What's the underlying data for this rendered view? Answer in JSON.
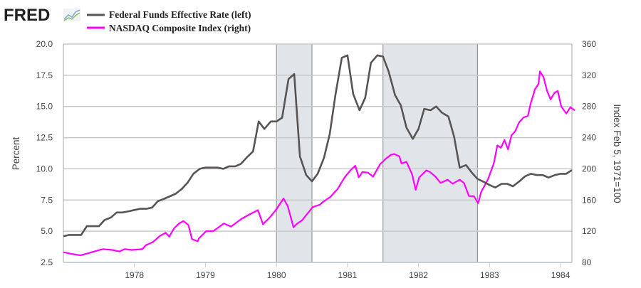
{
  "logo": {
    "text": "FRED",
    "icon": "line-chart-icon"
  },
  "legend": [
    {
      "label": "Federal Funds Effective Rate (left)",
      "color": "#595454"
    },
    {
      "label": "NASDAQ Composite Index (right)",
      "color": "#ff00ff"
    }
  ],
  "chart_data": {
    "type": "line",
    "title": "",
    "xlabel": "",
    "xlim": [
      1977.0,
      1984.16
    ],
    "x_ticks": [
      {
        "value": 1978,
        "label": "1978"
      },
      {
        "value": 1979,
        "label": "1979"
      },
      {
        "value": 1980,
        "label": "1980"
      },
      {
        "value": 1981,
        "label": "1981"
      },
      {
        "value": 1982,
        "label": "1982"
      },
      {
        "value": 1983,
        "label": "1983"
      },
      {
        "value": 1984,
        "label": "1984"
      }
    ],
    "y_left": {
      "label": "Percent",
      "range": [
        2.5,
        20.0
      ],
      "ticks": [
        "2.5",
        "5.0",
        "7.5",
        "10.0",
        "12.5",
        "15.0",
        "17.5",
        "20.0"
      ]
    },
    "y_right": {
      "label": "Index Feb 5, 1971=100",
      "range": [
        80,
        360
      ],
      "ticks": [
        "80",
        "120",
        "160",
        "200",
        "240",
        "280",
        "320",
        "360"
      ]
    },
    "grid": true,
    "recessions": [
      {
        "start": 1980.0,
        "end": 1980.5
      },
      {
        "start": 1981.5,
        "end": 1982.83
      }
    ],
    "recession_color": "#e1e5ea",
    "series": [
      {
        "name": "Federal Funds Effective Rate (left)",
        "axis": "left",
        "color": "#595454",
        "points": [
          [
            1977.0,
            4.6
          ],
          [
            1977.08,
            4.7
          ],
          [
            1977.17,
            4.7
          ],
          [
            1977.25,
            4.7
          ],
          [
            1977.33,
            5.4
          ],
          [
            1977.42,
            5.4
          ],
          [
            1977.5,
            5.4
          ],
          [
            1977.58,
            5.9
          ],
          [
            1977.67,
            6.1
          ],
          [
            1977.75,
            6.5
          ],
          [
            1977.83,
            6.5
          ],
          [
            1977.92,
            6.6
          ],
          [
            1978.0,
            6.7
          ],
          [
            1978.08,
            6.8
          ],
          [
            1978.17,
            6.8
          ],
          [
            1978.25,
            6.9
          ],
          [
            1978.33,
            7.4
          ],
          [
            1978.42,
            7.6
          ],
          [
            1978.5,
            7.8
          ],
          [
            1978.58,
            8.0
          ],
          [
            1978.67,
            8.4
          ],
          [
            1978.75,
            8.9
          ],
          [
            1978.83,
            9.6
          ],
          [
            1978.92,
            10.0
          ],
          [
            1979.0,
            10.1
          ],
          [
            1979.08,
            10.1
          ],
          [
            1979.17,
            10.1
          ],
          [
            1979.25,
            10.0
          ],
          [
            1979.33,
            10.2
          ],
          [
            1979.42,
            10.2
          ],
          [
            1979.5,
            10.4
          ],
          [
            1979.58,
            10.9
          ],
          [
            1979.67,
            11.4
          ],
          [
            1979.75,
            13.8
          ],
          [
            1979.83,
            13.2
          ],
          [
            1979.92,
            13.8
          ],
          [
            1980.0,
            13.8
          ],
          [
            1980.08,
            14.1
          ],
          [
            1980.17,
            17.2
          ],
          [
            1980.25,
            17.6
          ],
          [
            1980.33,
            11.0
          ],
          [
            1980.42,
            9.5
          ],
          [
            1980.5,
            9.0
          ],
          [
            1980.58,
            9.6
          ],
          [
            1980.67,
            10.9
          ],
          [
            1980.75,
            12.8
          ],
          [
            1980.83,
            15.9
          ],
          [
            1980.92,
            18.9
          ],
          [
            1981.0,
            19.1
          ],
          [
            1981.08,
            16.0
          ],
          [
            1981.17,
            14.7
          ],
          [
            1981.25,
            15.7
          ],
          [
            1981.33,
            18.5
          ],
          [
            1981.42,
            19.1
          ],
          [
            1981.5,
            19.0
          ],
          [
            1981.58,
            17.8
          ],
          [
            1981.67,
            15.9
          ],
          [
            1981.75,
            15.1
          ],
          [
            1981.83,
            13.3
          ],
          [
            1981.92,
            12.4
          ],
          [
            1982.0,
            13.2
          ],
          [
            1982.08,
            14.8
          ],
          [
            1982.17,
            14.7
          ],
          [
            1982.25,
            15.0
          ],
          [
            1982.33,
            14.5
          ],
          [
            1982.42,
            14.2
          ],
          [
            1982.5,
            12.6
          ],
          [
            1982.58,
            10.1
          ],
          [
            1982.67,
            10.3
          ],
          [
            1982.75,
            9.7
          ],
          [
            1982.83,
            9.2
          ],
          [
            1982.92,
            8.95
          ],
          [
            1983.0,
            8.7
          ],
          [
            1983.08,
            8.5
          ],
          [
            1983.17,
            8.8
          ],
          [
            1983.25,
            8.8
          ],
          [
            1983.33,
            8.6
          ],
          [
            1983.42,
            9.0
          ],
          [
            1983.5,
            9.4
          ],
          [
            1983.58,
            9.6
          ],
          [
            1983.67,
            9.5
          ],
          [
            1983.75,
            9.5
          ],
          [
            1983.83,
            9.3
          ],
          [
            1983.92,
            9.5
          ],
          [
            1984.0,
            9.6
          ],
          [
            1984.08,
            9.6
          ],
          [
            1984.16,
            9.9
          ]
        ]
      },
      {
        "name": "NASDAQ Composite Index (right)",
        "axis": "right",
        "color": "#ff00ff",
        "points": [
          [
            1977.0,
            93
          ],
          [
            1977.11,
            91
          ],
          [
            1977.24,
            89
          ],
          [
            1977.36,
            92
          ],
          [
            1977.51,
            96
          ],
          [
            1977.56,
            97
          ],
          [
            1977.69,
            96
          ],
          [
            1977.79,
            94
          ],
          [
            1977.86,
            97
          ],
          [
            1977.96,
            96
          ],
          [
            1978.11,
            97
          ],
          [
            1978.16,
            102
          ],
          [
            1978.26,
            106
          ],
          [
            1978.36,
            114
          ],
          [
            1978.44,
            118
          ],
          [
            1978.49,
            113
          ],
          [
            1978.56,
            124
          ],
          [
            1978.63,
            130
          ],
          [
            1978.69,
            133
          ],
          [
            1978.76,
            128
          ],
          [
            1978.81,
            110
          ],
          [
            1978.89,
            107
          ],
          [
            1978.91,
            111
          ],
          [
            1979.01,
            120
          ],
          [
            1979.11,
            120
          ],
          [
            1979.26,
            130
          ],
          [
            1979.36,
            126
          ],
          [
            1979.51,
            136
          ],
          [
            1979.63,
            142
          ],
          [
            1979.74,
            147
          ],
          [
            1979.81,
            129
          ],
          [
            1979.91,
            138
          ],
          [
            1979.99,
            147
          ],
          [
            1980.1,
            162
          ],
          [
            1980.16,
            152
          ],
          [
            1980.24,
            125
          ],
          [
            1980.28,
            129
          ],
          [
            1980.36,
            134
          ],
          [
            1980.51,
            151
          ],
          [
            1980.66,
            158
          ],
          [
            1980.76,
            164
          ],
          [
            1980.61,
            154
          ],
          [
            1980.86,
            174
          ],
          [
            1980.96,
            189
          ],
          [
            1981.04,
            198
          ],
          [
            1981.11,
            204
          ],
          [
            1981.16,
            189
          ],
          [
            1981.21,
            196
          ],
          [
            1981.29,
            195
          ],
          [
            1981.36,
            190
          ],
          [
            1981.41,
            198
          ],
          [
            1981.46,
            206
          ],
          [
            1981.54,
            213
          ],
          [
            1981.61,
            218
          ],
          [
            1981.66,
            219
          ],
          [
            1981.73,
            216
          ],
          [
            1981.76,
            207
          ],
          [
            1981.83,
            209
          ],
          [
            1981.91,
            193
          ],
          [
            1981.96,
            173
          ],
          [
            1982.01,
            189
          ],
          [
            1982.11,
            198
          ],
          [
            1982.16,
            196
          ],
          [
            1982.24,
            190
          ],
          [
            1982.31,
            182
          ],
          [
            1982.41,
            186
          ],
          [
            1982.48,
            181
          ],
          [
            1982.58,
            186
          ],
          [
            1982.64,
            182
          ],
          [
            1982.71,
            165
          ],
          [
            1982.78,
            165
          ],
          [
            1982.84,
            156
          ],
          [
            1982.88,
            170
          ],
          [
            1982.98,
            187
          ],
          [
            1983.06,
            207
          ],
          [
            1983.11,
            230
          ],
          [
            1983.16,
            227
          ],
          [
            1983.21,
            237
          ],
          [
            1983.26,
            225
          ],
          [
            1983.31,
            243
          ],
          [
            1983.36,
            248
          ],
          [
            1983.42,
            260
          ],
          [
            1983.48,
            266
          ],
          [
            1983.54,
            268
          ],
          [
            1983.58,
            284
          ],
          [
            1983.64,
            302
          ],
          [
            1983.69,
            309
          ],
          [
            1983.71,
            325
          ],
          [
            1983.73,
            322
          ],
          [
            1983.76,
            318
          ],
          [
            1983.81,
            300
          ],
          [
            1983.86,
            289
          ],
          [
            1983.91,
            297
          ],
          [
            1983.96,
            300
          ],
          [
            1984.01,
            280
          ],
          [
            1984.08,
            271
          ],
          [
            1984.14,
            279
          ],
          [
            1984.2,
            275
          ]
        ]
      }
    ]
  }
}
